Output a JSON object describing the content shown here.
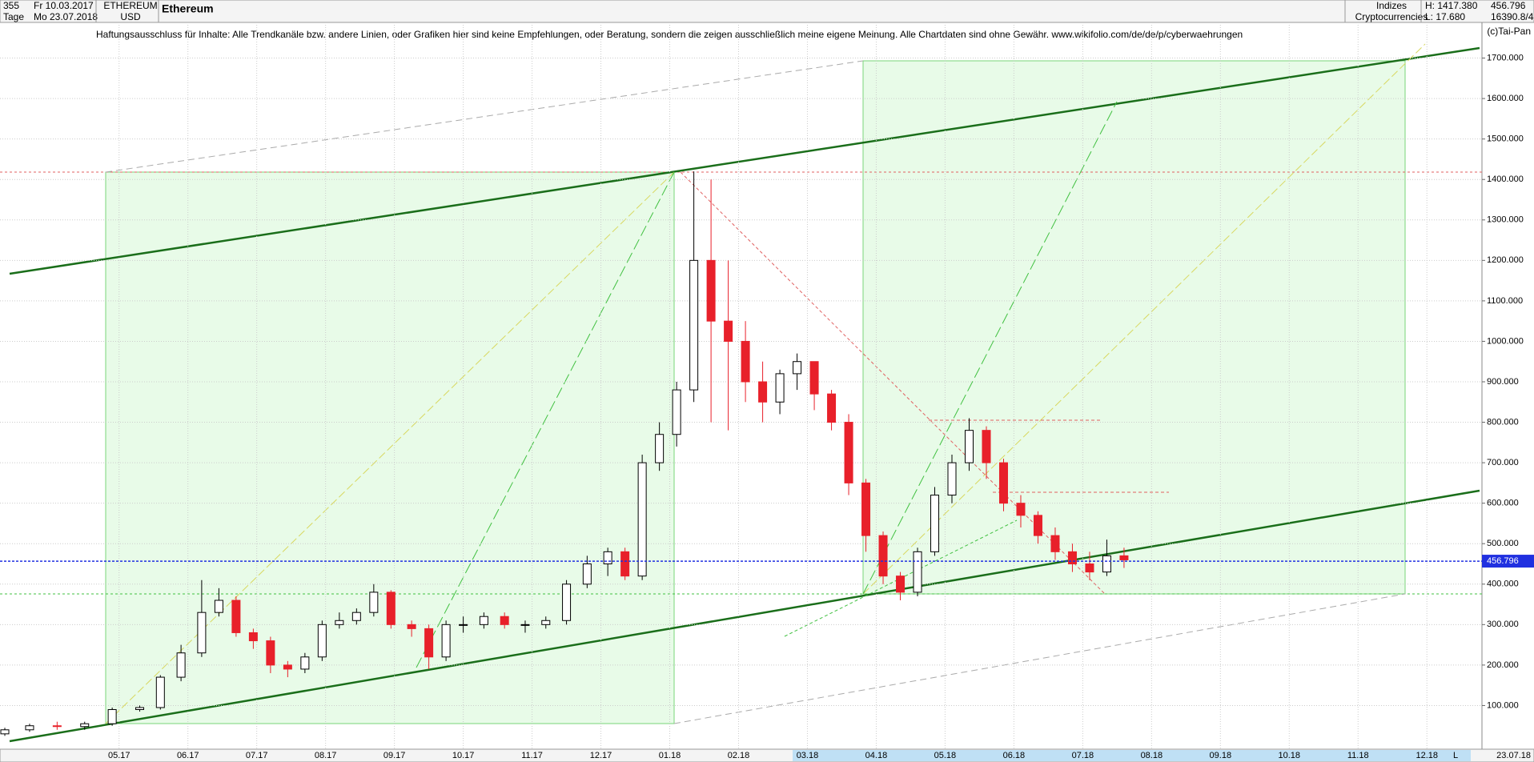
{
  "header": {
    "period_count": "355",
    "from": "Fr 10.03.2017",
    "unit": "Tage",
    "to": "Mo 23.07.2018",
    "symbol": "ETHEREUM",
    "currency": "USD",
    "name": "Ethereum",
    "group": "Indizes",
    "subgroup": "Cryptocurrencies",
    "high": "H: 1417.380",
    "low": "L: 17.680",
    "last": "456.796",
    "volume": "16390.8/4"
  },
  "disclaimer": "Haftungsausschluss für Inhalte: Alle Trendkanäle bzw. andere Linien, oder Grafiken hier sind keine Empfehlungen, oder Beratung, sondern die zeigen ausschließlich meine eigene Meinung. Alle Chartdaten sind ohne Gewähr.  www.wikifolio.com/de/de/p/cyberwaehrungen",
  "copyright": "(c)Tai-Pan",
  "footer": {
    "date": "23.07.18",
    "scale": "L"
  },
  "chart_data": {
    "type": "candlestick",
    "x": [
      3.34,
      3.7,
      4.1,
      4.5,
      4.9,
      5.3,
      5.6,
      5.9,
      6.2,
      6.45,
      6.7,
      6.95,
      7.2,
      7.45,
      7.7,
      7.95,
      8.2,
      8.45,
      8.7,
      8.95,
      9.25,
      9.5,
      9.75,
      10,
      10.3,
      10.6,
      10.9,
      11.2,
      11.5,
      11.8,
      12.1,
      12.35,
      12.6,
      12.85,
      13.1,
      13.35,
      13.6,
      13.85,
      14.1,
      14.35,
      14.6,
      14.85,
      15.1,
      15.35,
      15.6,
      15.85,
      16.1,
      16.35,
      16.6,
      16.85,
      17.1,
      17.35,
      17.6,
      17.85,
      18.1,
      18.35,
      18.6,
      18.85,
      19.1,
      19.35,
      19.6
    ],
    "open": [
      30,
      40,
      50,
      48,
      55,
      90,
      95,
      170,
      230,
      330,
      360,
      280,
      260,
      200,
      190,
      220,
      300,
      310,
      330,
      380,
      300,
      290,
      220,
      300,
      300,
      320,
      300,
      300,
      310,
      400,
      450,
      480,
      420,
      700,
      770,
      880,
      1200,
      1050,
      1000,
      900,
      850,
      920,
      950,
      870,
      800,
      650,
      520,
      420,
      380,
      480,
      620,
      700,
      780,
      700,
      600,
      570,
      520,
      480,
      450,
      430,
      470
    ],
    "high": [
      45,
      55,
      60,
      60,
      95,
      100,
      175,
      250,
      410,
      390,
      370,
      290,
      270,
      210,
      230,
      310,
      330,
      340,
      400,
      385,
      310,
      300,
      310,
      320,
      330,
      330,
      310,
      320,
      410,
      470,
      490,
      490,
      720,
      800,
      900,
      1420,
      1400,
      1200,
      1050,
      950,
      930,
      970,
      950,
      880,
      820,
      660,
      530,
      430,
      490,
      640,
      720,
      810,
      790,
      710,
      620,
      580,
      540,
      500,
      480,
      510,
      490
    ],
    "low": [
      25,
      35,
      40,
      40,
      50,
      85,
      90,
      160,
      220,
      320,
      270,
      240,
      180,
      170,
      180,
      210,
      290,
      300,
      320,
      290,
      270,
      190,
      210,
      280,
      290,
      290,
      280,
      290,
      300,
      390,
      420,
      410,
      410,
      680,
      740,
      850,
      800,
      780,
      850,
      800,
      820,
      880,
      830,
      780,
      620,
      480,
      400,
      360,
      370,
      470,
      600,
      680,
      660,
      580,
      540,
      500,
      460,
      430,
      410,
      420,
      440
    ],
    "close": [
      40,
      50,
      48,
      55,
      90,
      95,
      170,
      230,
      330,
      360,
      280,
      260,
      200,
      190,
      220,
      300,
      310,
      330,
      380,
      300,
      290,
      220,
      300,
      300,
      320,
      300,
      300,
      310,
      400,
      450,
      480,
      420,
      700,
      770,
      880,
      1200,
      1050,
      1000,
      900,
      850,
      920,
      950,
      870,
      800,
      650,
      520,
      420,
      380,
      480,
      620,
      700,
      780,
      700,
      600,
      570,
      520,
      480,
      450,
      430,
      470,
      460
    ],
    "up_color": "#000000",
    "down_color": "#e8202a",
    "last_price": {
      "value": 456.796,
      "label": "456.796"
    },
    "last_color": "#2030e0",
    "xlim": [
      3.27,
      24.8
    ],
    "xticks": [
      {
        "value": 5,
        "label": "05.17"
      },
      {
        "value": 6,
        "label": "06.17"
      },
      {
        "value": 7,
        "label": "07.17"
      },
      {
        "value": 8,
        "label": "08.17"
      },
      {
        "value": 9,
        "label": "09.17"
      },
      {
        "value": 10,
        "label": "10.17"
      },
      {
        "value": 11,
        "label": "11.17"
      },
      {
        "value": 12,
        "label": "12.17"
      },
      {
        "value": 13,
        "label": "01.18"
      },
      {
        "value": 14,
        "label": "02.18"
      },
      {
        "value": 15,
        "label": "03.18"
      },
      {
        "value": 16,
        "label": "04.18"
      },
      {
        "value": 17,
        "label": "05.18"
      },
      {
        "value": 18,
        "label": "06.18"
      },
      {
        "value": 19,
        "label": "07.18"
      },
      {
        "value": 20,
        "label": "08.18"
      },
      {
        "value": 21,
        "label": "09.18"
      },
      {
        "value": 22,
        "label": "10.18"
      },
      {
        "value": 23,
        "label": "11.18"
      },
      {
        "value": 24,
        "label": "12.18"
      }
    ],
    "ylim": [
      0,
      1800
    ],
    "yticks": [
      {
        "value": 100,
        "label": "100.000"
      },
      {
        "value": 200,
        "label": "200.000"
      },
      {
        "value": 300,
        "label": "300.000"
      },
      {
        "value": 400,
        "label": "400.000"
      },
      {
        "value": 500,
        "label": "500.000"
      },
      {
        "value": 600,
        "label": "600.000"
      },
      {
        "value": 700,
        "label": "700.000"
      },
      {
        "value": 800,
        "label": "800.000"
      },
      {
        "value": 900,
        "label": "900.000"
      },
      {
        "value": 1000,
        "label": "1000.000"
      },
      {
        "value": 1100,
        "label": "1100.000"
      },
      {
        "value": 1200,
        "label": "1200.000"
      },
      {
        "value": 1300,
        "label": "1300.000"
      },
      {
        "value": 1400,
        "label": "1400.000"
      },
      {
        "value": 1500,
        "label": "1500.000"
      },
      {
        "value": 1600,
        "label": "1600.000"
      },
      {
        "value": 1700,
        "label": "1700.000"
      }
    ],
    "grid": true
  }
}
